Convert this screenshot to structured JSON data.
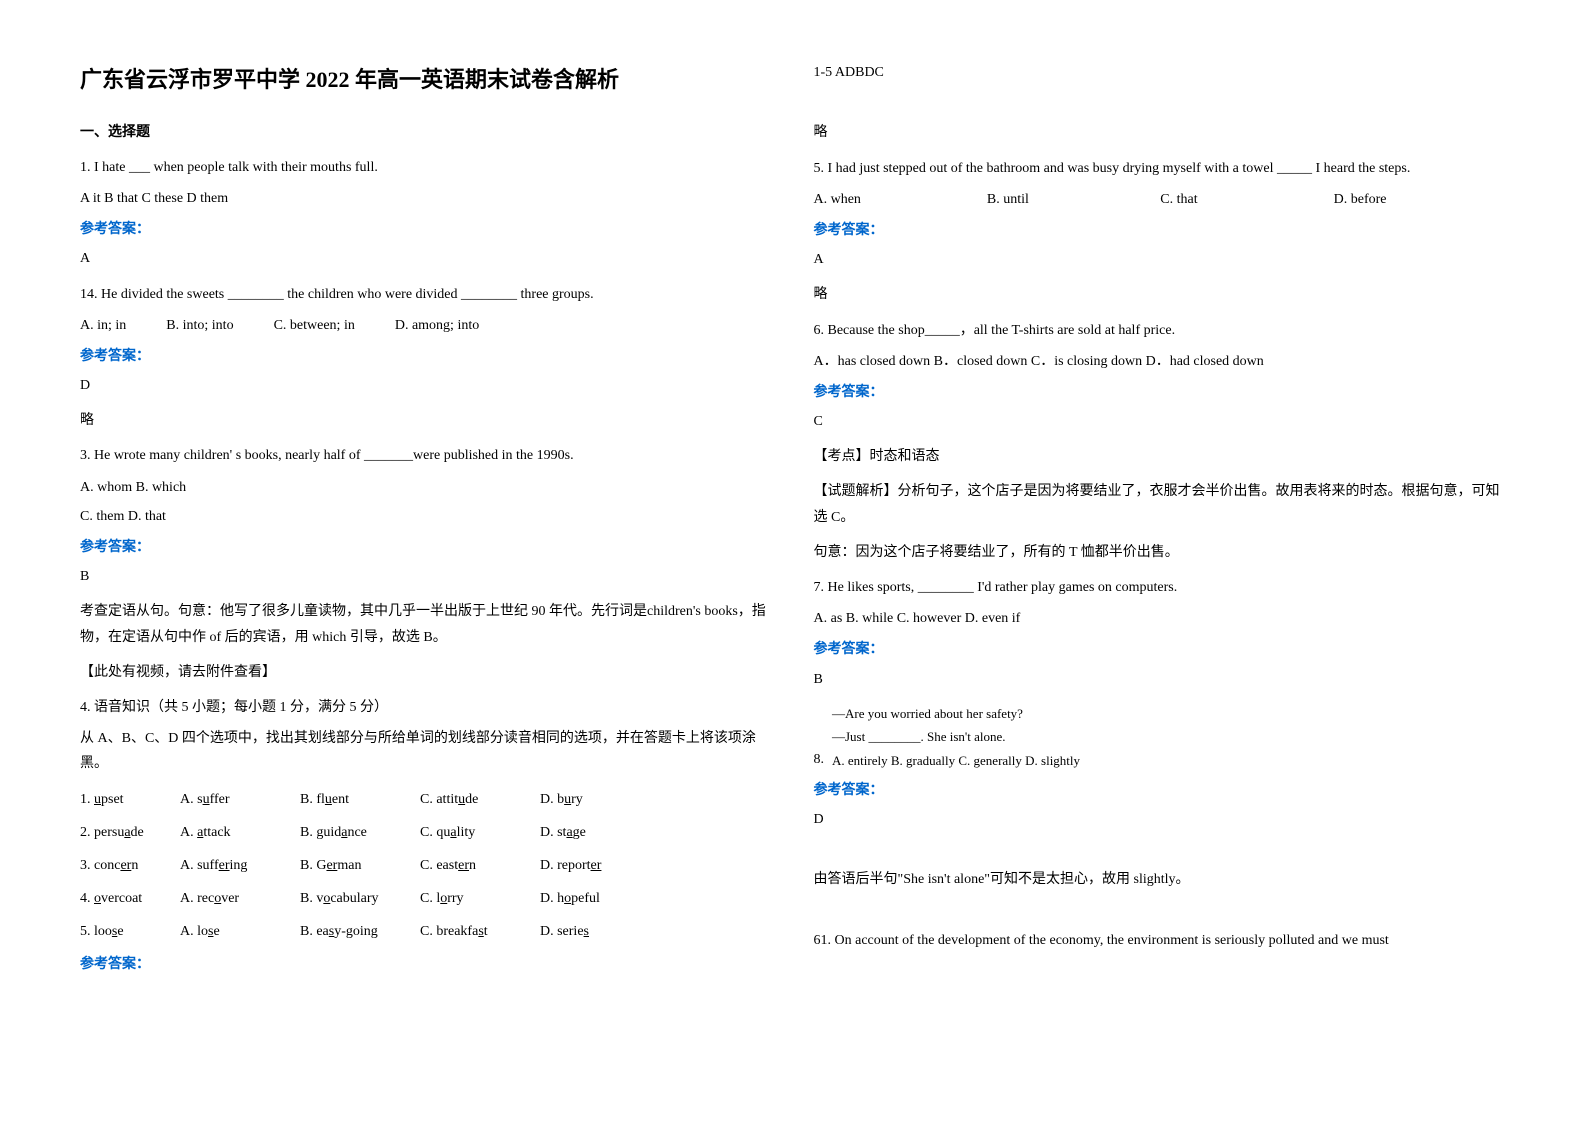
{
  "title": "广东省云浮市罗平中学 2022 年高一英语期末试卷含解析",
  "section1_header": "一、选择题",
  "q1": {
    "text": "1. I hate ___ when people talk with their mouths full.",
    "options": "   A it   B that   C these   D them",
    "answer_label": "参考答案：",
    "answer": "A"
  },
  "q14": {
    "text": "14. He divided the sweets ________ the children who were divided ________ three groups.",
    "opt_a": "A. in; in",
    "opt_b": "B. into; into",
    "opt_c": "C. between; in",
    "opt_d": "D. among; into",
    "answer_label": "参考答案：",
    "answer": "D",
    "note": "略"
  },
  "q3": {
    "text": "3. He wrote many children' s books, nearly half of _______were published in the 1990s.",
    "opts1": "A. whom   B. which",
    "opts2": "C. them   D. that",
    "answer_label": "参考答案：",
    "answer": "B",
    "explanation": "考查定语从句。句意：他写了很多儿童读物，其中几乎一半出版于上世纪 90 年代。先行词是children's books，指物，在定语从句中作 of 后的宾语，用 which 引导，故选 B。",
    "video_note": "【此处有视频，请去附件查看】"
  },
  "q4": {
    "header": "4. 语音知识（共 5 小题；每小题 1 分，满分 5 分）",
    "instruction": "从 A、B、C、D 四个选项中，找出其划线部分与所给单词的划线部分读音相同的选项，并在答题卡上将该项涂黑。",
    "rows": [
      {
        "num": "1. upset",
        "u_pos": 0,
        "a": "A. suffer",
        "b": "B. fluent",
        "c": "C. attitude",
        "d": "D. bury"
      },
      {
        "num": "2. persuade",
        "a": "A. attack",
        "b": "B. guidance",
        "c": "C. quality",
        "d": "D. stage"
      },
      {
        "num": "3. concern",
        "a": "A. suffering",
        "b": "B. German",
        "c": "C. eastern",
        "d": "D. reporter"
      },
      {
        "num": "4. overcoat",
        "a": "A. recover",
        "b": "B. vocabulary",
        "c": "C. lorry",
        "d": "D. hopeful"
      },
      {
        "num": "5. loose",
        "a": "A. lose",
        "b": "B. easy-going",
        "c": "C. breakfast",
        "d": "D. series"
      }
    ],
    "answer_label": "参考答案：",
    "answer": "1-5 ADBDC",
    "note": "略"
  },
  "q5": {
    "text": "5. I had just stepped out of the bathroom and was busy drying myself with a towel _____ I heard the steps.",
    "opt_a": "A. when",
    "opt_b": "B. until",
    "opt_c": "C. that",
    "opt_d": "D. before",
    "answer_label": "参考答案：",
    "answer": "A",
    "note": "略"
  },
  "q6": {
    "text": "6. Because the shop_____，all the T-shirts are sold at half price.",
    "options": "A．has closed down B．closed down C．is closing down D．had closed down",
    "answer_label": "参考答案：",
    "answer": "C",
    "point": "【考点】时态和语态",
    "explanation": "【试题解析】分析句子，这个店子是因为将要结业了，衣服才会半价出售。故用表将来的时态。根据句意，可知选 C。",
    "meaning": "句意：因为这个店子将要结业了，所有的 T 恤都半价出售。"
  },
  "q7": {
    "text": "7. He likes sports, ________ I'd rather play games on computers.",
    "options": "A. as   B. while   C. however   D. even if",
    "answer_label": "参考答案：",
    "answer": "B"
  },
  "q8": {
    "num": "8.",
    "line1": "—Are you worried about her safety?",
    "line2": "—Just ________. She isn't alone.",
    "options": "A.  entirely        B.  gradually    C.  generally       D.  slightly",
    "answer_label": "参考答案：",
    "answer": "D",
    "explanation": "由答语后半句\"She isn't alone\"可知不是太担心，故用 slightly。"
  },
  "q61": {
    "text": "61. On account of the development of the economy, the environment is seriously polluted and we must"
  }
}
